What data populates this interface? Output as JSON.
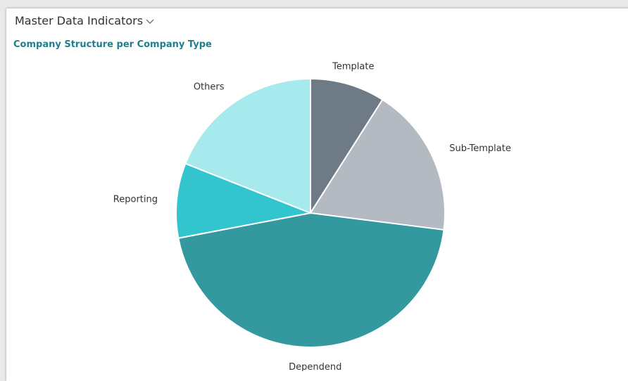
{
  "header": {
    "title": "Master Data Indicators"
  },
  "chart_data": {
    "type": "pie",
    "title": "Company Structure per Company Type",
    "categories": [
      "Template",
      "Sub-Template",
      "Dependend",
      "Reporting",
      "Others"
    ],
    "values": [
      9,
      18,
      45,
      9,
      19
    ],
    "colors": [
      "#6e7a85",
      "#b3bac2",
      "#33999e",
      "#33c5ce",
      "#a6eaee"
    ],
    "legend": "none",
    "start_angle_deg": 0,
    "direction": "clockwise"
  },
  "colors": {
    "accent": "#1f7f8c",
    "header_text": "#323130"
  }
}
